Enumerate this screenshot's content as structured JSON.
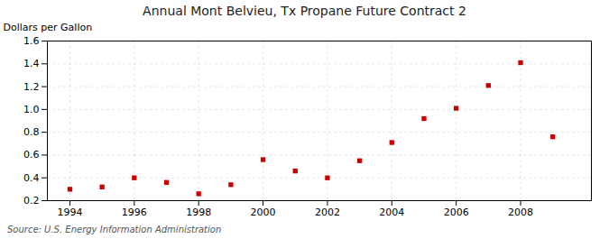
{
  "chart_data": {
    "type": "scatter",
    "title": "Annual Mont Belvieu, Tx Propane Future Contract 2",
    "ylabel": "Dollars per Gallon",
    "annotations": [
      "Source: U.S. Energy Information Administration"
    ],
    "x": [
      1994,
      1995,
      1996,
      1997,
      1998,
      1999,
      2000,
      2001,
      2002,
      2003,
      2004,
      2005,
      2006,
      2007,
      2008,
      2009
    ],
    "values": [
      0.3,
      0.32,
      0.4,
      0.36,
      0.26,
      0.34,
      0.56,
      0.46,
      0.4,
      0.55,
      0.71,
      0.92,
      1.01,
      1.21,
      1.41,
      0.76
    ],
    "color": "#cc0000",
    "marker": "square",
    "xlim": [
      1993.3,
      2010.2
    ],
    "ylim": [
      0.2,
      1.6
    ],
    "xticks": [
      1994,
      1996,
      1998,
      2000,
      2002,
      2004,
      2006,
      2008
    ],
    "yticks": [
      0.2,
      0.4,
      0.6,
      0.8,
      {
        "value": 1.0,
        "label": "1.0"
      },
      1.2,
      1.4,
      1.6
    ],
    "grid": true
  }
}
